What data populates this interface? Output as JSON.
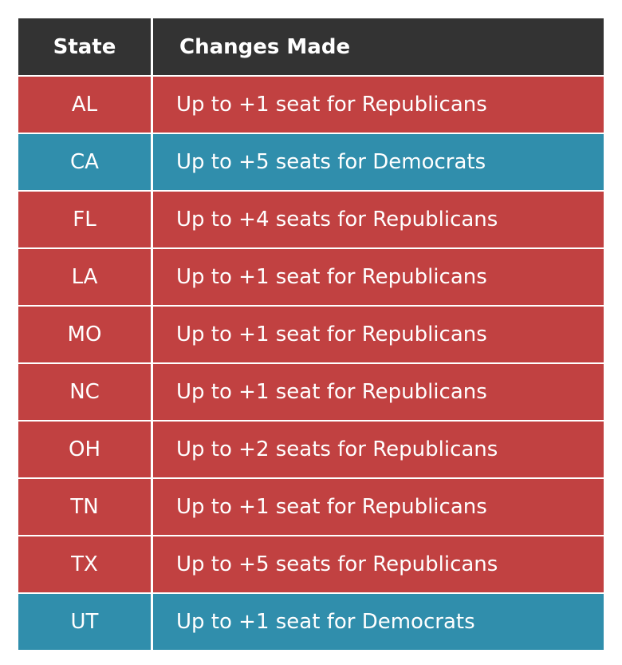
{
  "colors": {
    "header": "#333333",
    "Republicans": "#c14141",
    "Democrats": "#308eac"
  },
  "chart_data": {
    "type": "table",
    "columns": [
      "State",
      "Changes Made"
    ],
    "rows": [
      {
        "state": "AL",
        "change": "Up to +1 seat for Republicans",
        "party": "Republicans"
      },
      {
        "state": "CA",
        "change": "Up to +5 seats for Democrats",
        "party": "Democrats"
      },
      {
        "state": "FL",
        "change": "Up to +4 seats for Republicans",
        "party": "Republicans"
      },
      {
        "state": "LA",
        "change": "Up to +1 seat for Republicans",
        "party": "Republicans"
      },
      {
        "state": "MO",
        "change": "Up to +1 seat for Republicans",
        "party": "Republicans"
      },
      {
        "state": "NC",
        "change": "Up to +1 seat for Republicans",
        "party": "Republicans"
      },
      {
        "state": "OH",
        "change": "Up to +2 seats for Republicans",
        "party": "Republicans"
      },
      {
        "state": "TN",
        "change": "Up to +1 seat for Republicans",
        "party": "Republicans"
      },
      {
        "state": "TX",
        "change": "Up to +5 seats for Republicans",
        "party": "Republicans"
      },
      {
        "state": "UT",
        "change": "Up to +1 seat for Democrats",
        "party": "Democrats"
      }
    ]
  }
}
